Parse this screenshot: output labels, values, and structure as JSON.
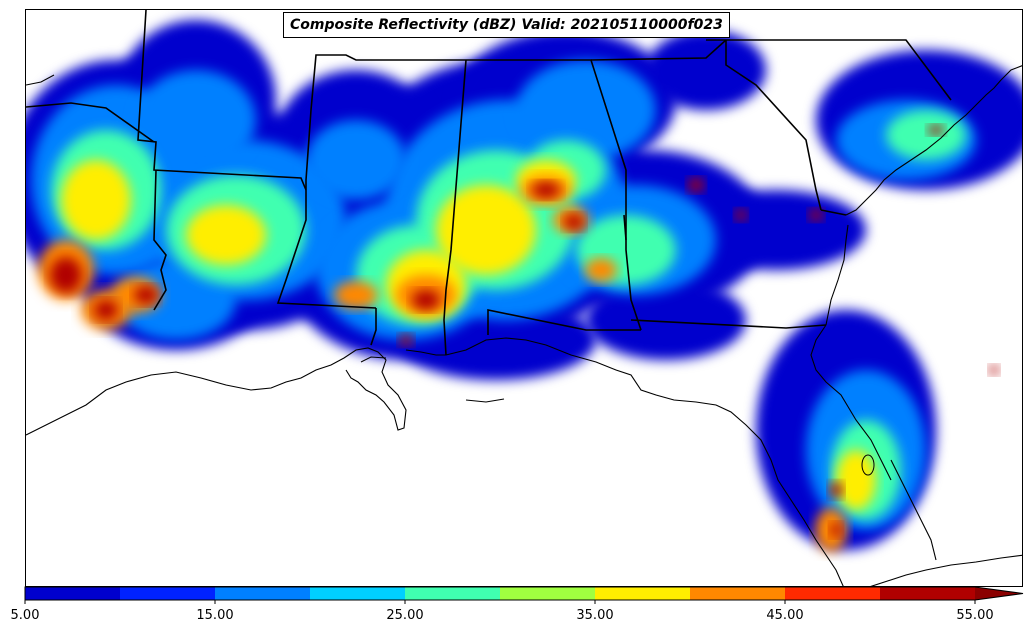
{
  "title": "Composite Reflectivity (dBZ) Valid: 202105110000f023",
  "colorbar": {
    "extend": "max",
    "bounds": [
      5,
      10,
      15,
      20,
      25,
      30,
      35,
      40,
      45,
      50,
      55
    ],
    "colors": [
      "#0000cd",
      "#0022ff",
      "#0080ff",
      "#00d0ff",
      "#40ffb0",
      "#a0ff40",
      "#ffee00",
      "#ff8800",
      "#ff2a00",
      "#b00000"
    ],
    "extend_color": "#8b0000",
    "tick_values": [
      5,
      15,
      25,
      35,
      45,
      55
    ],
    "tick_labels": [
      "5.00",
      "15.00",
      "25.00",
      "35.00",
      "45.00",
      "55.00"
    ]
  },
  "map": {
    "region": "southeast-us",
    "state_border_color": "#000000",
    "coastline_color": "#000000"
  }
}
